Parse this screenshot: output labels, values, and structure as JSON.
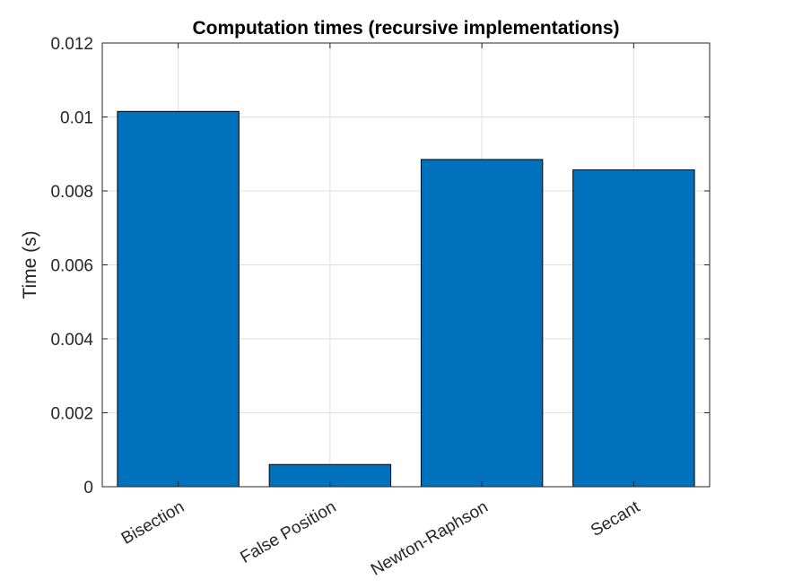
{
  "chart_data": {
    "type": "bar",
    "title": "Computation times (recursive implementations)",
    "xlabel": "",
    "ylabel": "Time (s)",
    "categories": [
      "Bisection",
      "False Position",
      "Newton-Raphson",
      "Secant"
    ],
    "values": [
      0.01015,
      0.0006,
      0.00885,
      0.00857
    ],
    "ylim": [
      0,
      0.012
    ],
    "yticks": [
      0,
      0.002,
      0.004,
      0.006,
      0.008,
      0.01,
      0.012
    ],
    "ytick_labels": [
      "0",
      "0.002",
      "0.004",
      "0.006",
      "0.008",
      "0.01",
      "0.012"
    ],
    "grid": true,
    "bar_color": "#0072bd",
    "xtick_rotation_deg": 30
  }
}
